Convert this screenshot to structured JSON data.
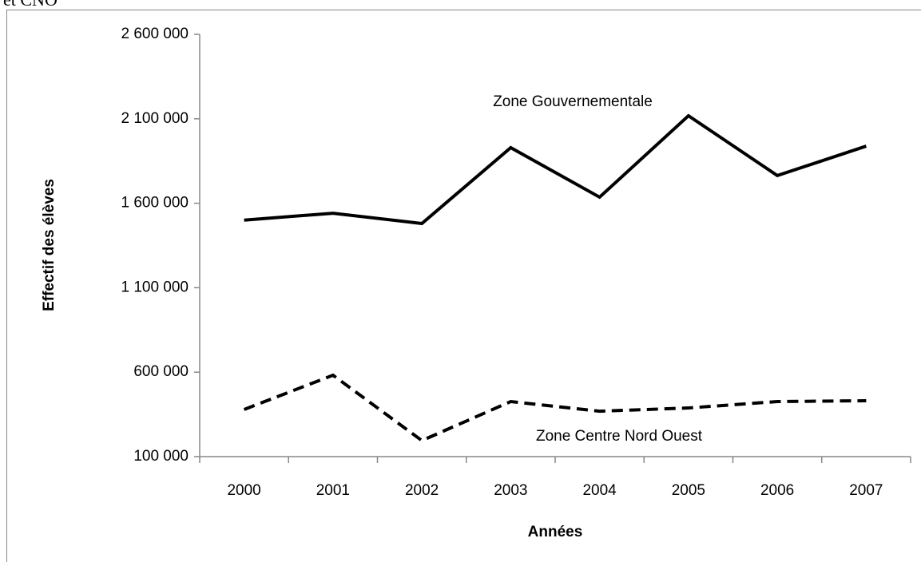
{
  "chart_data": {
    "type": "line",
    "title": "et CNO",
    "xlabel": "Années",
    "ylabel": "Effectif des élèves",
    "categories": [
      "2000",
      "2001",
      "2002",
      "2003",
      "2004",
      "2005",
      "2006",
      "2007"
    ],
    "series": [
      {
        "name": "Zone Gouvernementale",
        "color": "#000000",
        "dash": "solid",
        "values": [
          1500000,
          1541000,
          1480000,
          1929000,
          1636000,
          2118000,
          1764000,
          1938000
        ]
      },
      {
        "name": "Zone Centre Nord Ouest",
        "color": "#000000",
        "dash": "dashed",
        "values": [
          379000,
          582000,
          195000,
          426000,
          369000,
          388000,
          426000,
          431000
        ]
      }
    ],
    "ylim": [
      100000,
      2600000
    ],
    "yticks": [
      {
        "value": 100000,
        "label": "100 000"
      },
      {
        "value": 600000,
        "label": "600 000"
      },
      {
        "value": 1100000,
        "label": "1 100 000"
      },
      {
        "value": 1600000,
        "label": "1 600 000"
      },
      {
        "value": 2100000,
        "label": "2 100 000"
      },
      {
        "value": 2600000,
        "label": "2 600 000"
      }
    ],
    "grid": false
  }
}
